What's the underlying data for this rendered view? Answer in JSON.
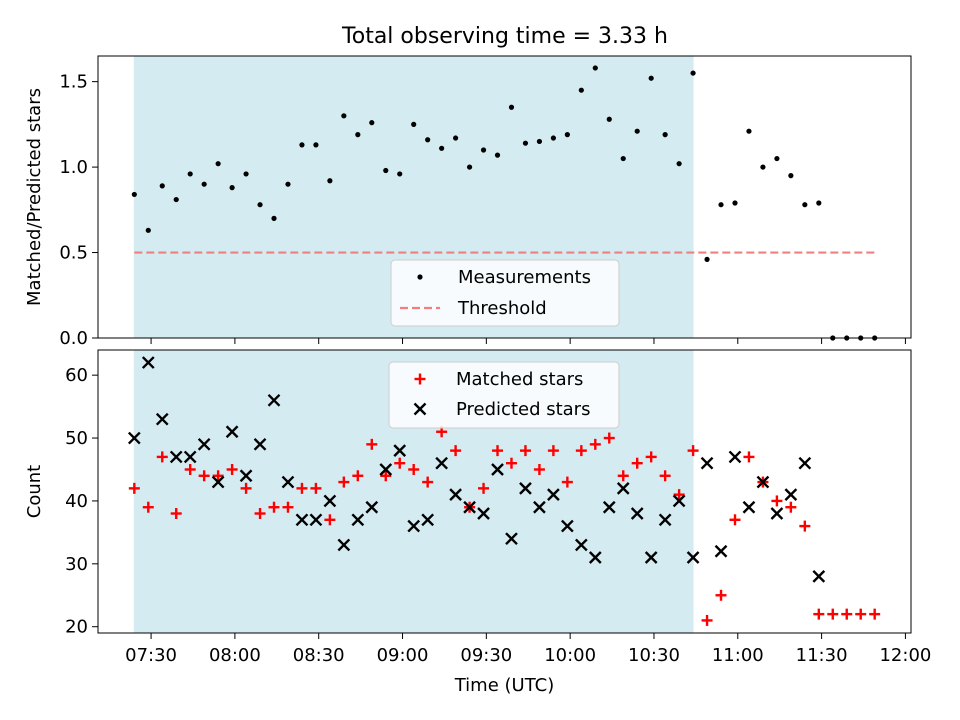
{
  "figure": {
    "title": "Total observing time = 3.33 h"
  },
  "chart_data": [
    {
      "type": "scatter",
      "ylabel": "Matched/Predicted stars",
      "xlabel": "",
      "xlim": [
        "07:11",
        "12:02"
      ],
      "ylim": [
        0,
        1.65
      ],
      "yticks": [
        0.0,
        0.5,
        1.0,
        1.5
      ],
      "ytick_labels": [
        "0.0",
        "0.5",
        "1.0",
        "1.5"
      ],
      "observing_window": [
        "07:24",
        "10:44"
      ],
      "legend": {
        "placement": "lower center",
        "entries": [
          "Measurements",
          "Threshold"
        ]
      },
      "threshold": {
        "y": 0.5,
        "x_range": [
          "07:24",
          "11:49"
        ],
        "color": "#f08080"
      },
      "series": [
        {
          "name": "Measurements",
          "marker": "dot",
          "color": "#000000",
          "x": [
            "07:24",
            "07:29",
            "07:34",
            "07:39",
            "07:44",
            "07:49",
            "07:54",
            "07:59",
            "08:04",
            "08:09",
            "08:14",
            "08:19",
            "08:24",
            "08:29",
            "08:34",
            "08:39",
            "08:44",
            "08:49",
            "08:54",
            "08:59",
            "09:04",
            "09:09",
            "09:14",
            "09:19",
            "09:24",
            "09:29",
            "09:34",
            "09:39",
            "09:44",
            "09:49",
            "09:54",
            "09:59",
            "10:04",
            "10:09",
            "10:14",
            "10:19",
            "10:24",
            "10:29",
            "10:34",
            "10:39",
            "10:44",
            "10:49",
            "10:54",
            "10:59",
            "11:04",
            "11:09",
            "11:14",
            "11:19",
            "11:24",
            "11:29",
            "11:34",
            "11:39",
            "11:44",
            "11:49"
          ],
          "y": [
            0.84,
            0.63,
            0.89,
            0.81,
            0.96,
            0.9,
            1.02,
            0.88,
            0.96,
            0.78,
            0.7,
            0.9,
            1.13,
            1.13,
            0.92,
            1.3,
            1.19,
            1.26,
            0.98,
            0.96,
            1.25,
            1.16,
            1.11,
            1.17,
            1.0,
            1.1,
            1.07,
            1.35,
            1.14,
            1.15,
            1.17,
            1.19,
            1.45,
            1.58,
            1.28,
            1.05,
            1.21,
            1.52,
            1.19,
            1.02,
            1.55,
            0.46,
            0.78,
            0.79,
            1.21,
            1.0,
            1.05,
            0.95,
            0.78,
            0.79,
            0.0,
            0.0,
            0.0,
            0.0
          ]
        }
      ]
    },
    {
      "type": "scatter",
      "ylabel": "Count",
      "xlabel": "Time (UTC)",
      "xlim": [
        "07:11",
        "12:02"
      ],
      "ylim": [
        19,
        64
      ],
      "yticks": [
        20,
        30,
        40,
        50,
        60
      ],
      "ytick_labels": [
        "20",
        "30",
        "40",
        "50",
        "60"
      ],
      "xticks": [
        "07:30",
        "08:00",
        "08:30",
        "09:00",
        "09:30",
        "10:00",
        "10:30",
        "11:00",
        "11:30",
        "12:00"
      ],
      "observing_window": [
        "07:24",
        "10:44"
      ],
      "legend": {
        "placement": "upper center",
        "entries": [
          "Matched stars",
          "Predicted stars"
        ]
      },
      "series": [
        {
          "name": "Matched stars",
          "marker": "plus",
          "color": "#ff0000",
          "x": [
            "07:24",
            "07:29",
            "07:34",
            "07:39",
            "07:44",
            "07:49",
            "07:54",
            "07:59",
            "08:04",
            "08:09",
            "08:14",
            "08:19",
            "08:24",
            "08:29",
            "08:34",
            "08:39",
            "08:44",
            "08:49",
            "08:54",
            "08:59",
            "09:04",
            "09:09",
            "09:14",
            "09:19",
            "09:24",
            "09:29",
            "09:34",
            "09:39",
            "09:44",
            "09:49",
            "09:54",
            "09:59",
            "10:04",
            "10:09",
            "10:14",
            "10:19",
            "10:24",
            "10:29",
            "10:34",
            "10:39",
            "10:44",
            "10:49",
            "10:54",
            "10:59",
            "11:04",
            "11:09",
            "11:14",
            "11:19",
            "11:24",
            "11:29",
            "11:34",
            "11:39",
            "11:44",
            "11:49"
          ],
          "y": [
            42,
            39,
            47,
            38,
            45,
            44,
            44,
            45,
            42,
            38,
            39,
            39,
            42,
            42,
            37,
            43,
            44,
            49,
            44,
            46,
            45,
            43,
            51,
            48,
            39,
            42,
            48,
            46,
            48,
            45,
            48,
            43,
            48,
            49,
            50,
            44,
            46,
            47,
            44,
            41,
            48,
            21,
            25,
            37,
            47,
            43,
            40,
            39,
            36,
            22,
            22,
            22,
            22,
            22
          ]
        },
        {
          "name": "Predicted stars",
          "marker": "x",
          "color": "#000000",
          "x": [
            "07:24",
            "07:29",
            "07:34",
            "07:39",
            "07:44",
            "07:49",
            "07:54",
            "07:59",
            "08:04",
            "08:09",
            "08:14",
            "08:19",
            "08:24",
            "08:29",
            "08:34",
            "08:39",
            "08:44",
            "08:49",
            "08:54",
            "08:59",
            "09:04",
            "09:09",
            "09:14",
            "09:19",
            "09:24",
            "09:29",
            "09:34",
            "09:39",
            "09:44",
            "09:49",
            "09:54",
            "09:59",
            "10:04",
            "10:09",
            "10:14",
            "10:19",
            "10:24",
            "10:29",
            "10:34",
            "10:39",
            "10:44",
            "10:49",
            "10:54",
            "10:59",
            "11:04",
            "11:09",
            "11:14",
            "11:19",
            "11:24",
            "11:29"
          ],
          "y": [
            50,
            62,
            53,
            47,
            47,
            49,
            43,
            51,
            44,
            49,
            56,
            43,
            37,
            37,
            40,
            33,
            37,
            39,
            45,
            48,
            36,
            37,
            46,
            41,
            39,
            38,
            45,
            34,
            42,
            39,
            41,
            36,
            33,
            31,
            39,
            42,
            38,
            31,
            37,
            40,
            31,
            46,
            32,
            47,
            39,
            43,
            38,
            41,
            46,
            28
          ]
        }
      ]
    }
  ]
}
